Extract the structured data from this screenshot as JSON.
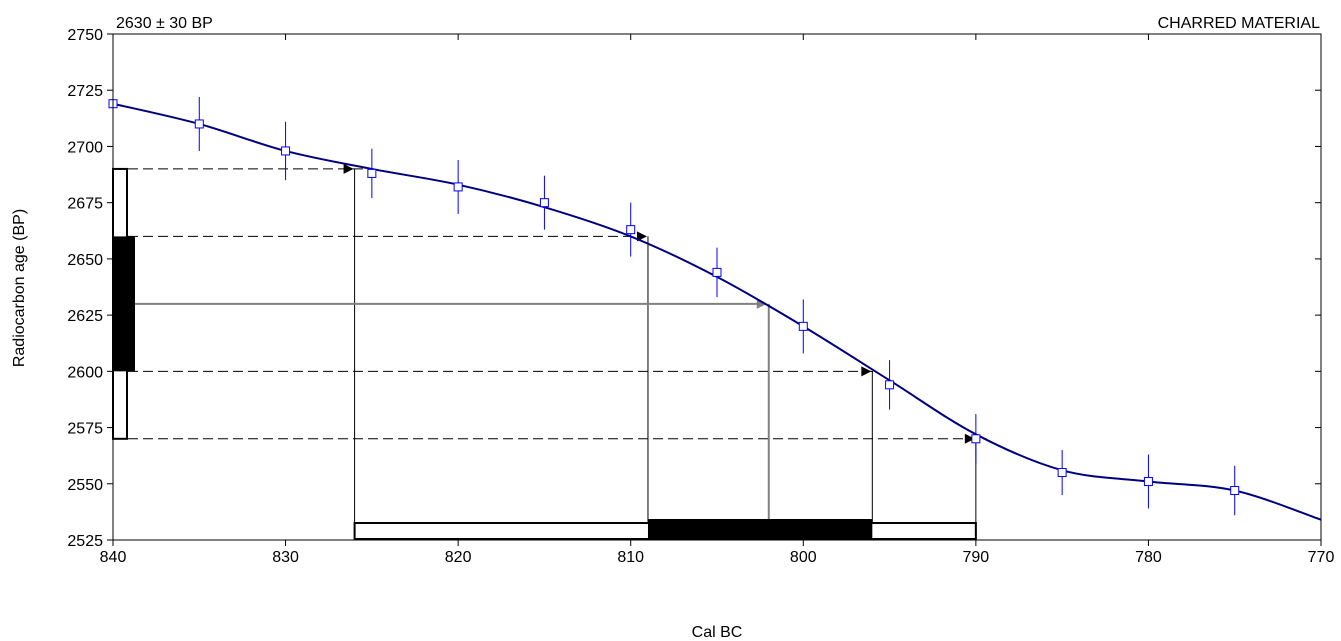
{
  "header": {
    "sample_label": "2630 ± 30 BP",
    "material_label": "CHARRED MATERIAL"
  },
  "chart_data": {
    "type": "line",
    "title": "",
    "xlabel": "Cal BC",
    "ylabel": "Radiocarbon age (BP)",
    "xlim": [
      840,
      770
    ],
    "ylim": [
      2525,
      2750
    ],
    "x_ticks": [
      840,
      830,
      820,
      810,
      800,
      790,
      780,
      770
    ],
    "y_ticks": [
      2525,
      2550,
      2575,
      2600,
      2625,
      2650,
      2675,
      2700,
      2725,
      2750
    ],
    "colors": {
      "curve": "#00007f",
      "points": "#0000ff",
      "intercept": "#808080",
      "range": "#000000"
    },
    "calibration_curve": {
      "x": [
        840,
        835,
        830,
        825,
        820,
        815,
        810,
        805,
        800,
        795,
        790,
        785,
        780,
        775,
        770
      ],
      "y": [
        2719,
        2710,
        2698,
        2690,
        2683,
        2673,
        2660,
        2642,
        2620,
        2596,
        2572,
        2556,
        2551,
        2547,
        2534
      ]
    },
    "data_points": {
      "x": [
        840,
        835,
        830,
        825,
        820,
        815,
        810,
        805,
        800,
        795,
        790,
        785,
        780,
        775
      ],
      "y": [
        2719,
        2710,
        2698,
        2688,
        2682,
        2675,
        2663,
        2644,
        2620,
        2594,
        2570,
        2555,
        2551,
        2547
      ],
      "err": [
        12,
        12,
        13,
        11,
        12,
        12,
        12,
        11,
        12,
        11,
        11,
        10,
        12,
        11
      ]
    },
    "measurement": {
      "age": 2630,
      "sigma1": [
        2600,
        2660
      ],
      "sigma2": [
        2570,
        2690
      ]
    },
    "intercept_x": 802,
    "sigma1_range": [
      809,
      796
    ],
    "sigma2_range": [
      826,
      790
    ],
    "sigma1_crossings": [
      [
        809,
        2660
      ],
      [
        796,
        2600
      ]
    ],
    "sigma2_crossings": [
      [
        826,
        2690
      ],
      [
        790,
        2570
      ]
    ]
  }
}
